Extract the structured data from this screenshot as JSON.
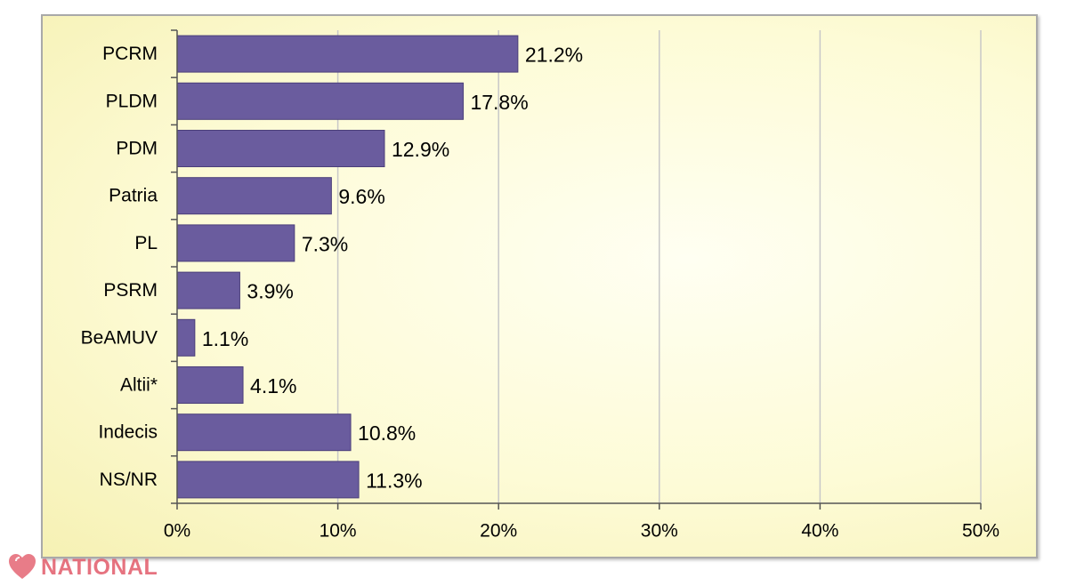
{
  "chart_data": {
    "type": "bar",
    "orientation": "horizontal",
    "categories": [
      "PCRM",
      "PLDM",
      "PDM",
      "Patria",
      "PL",
      "PSRM",
      "BeAMUV",
      "Altii*",
      "Indecis",
      "NS/NR"
    ],
    "values": [
      21.2,
      17.8,
      12.9,
      9.6,
      7.3,
      3.9,
      1.1,
      4.1,
      10.8,
      11.3
    ],
    "value_labels": [
      "21.2%",
      "17.8%",
      "12.9%",
      "9.6%",
      "7.3%",
      "3.9%",
      "1.1%",
      "4.1%",
      "10.8%",
      "11.3%"
    ],
    "x_ticks": [
      0,
      10,
      20,
      30,
      40,
      50
    ],
    "x_tick_labels": [
      "0%",
      "10%",
      "20%",
      "30%",
      "40%",
      "50%"
    ],
    "xlim": [
      0,
      50
    ],
    "grid": true,
    "legend": "none",
    "title": "",
    "xlabel": "",
    "ylabel": ""
  },
  "colors": {
    "bar": "#6a5c9e",
    "bar_stroke": "#4b3f7a",
    "grid": "#c8c8c8",
    "axis": "#555555",
    "watermark": "#e25b6a"
  },
  "watermark": {
    "text": "NATIONAL",
    "icon": "heart-logo-icon"
  }
}
